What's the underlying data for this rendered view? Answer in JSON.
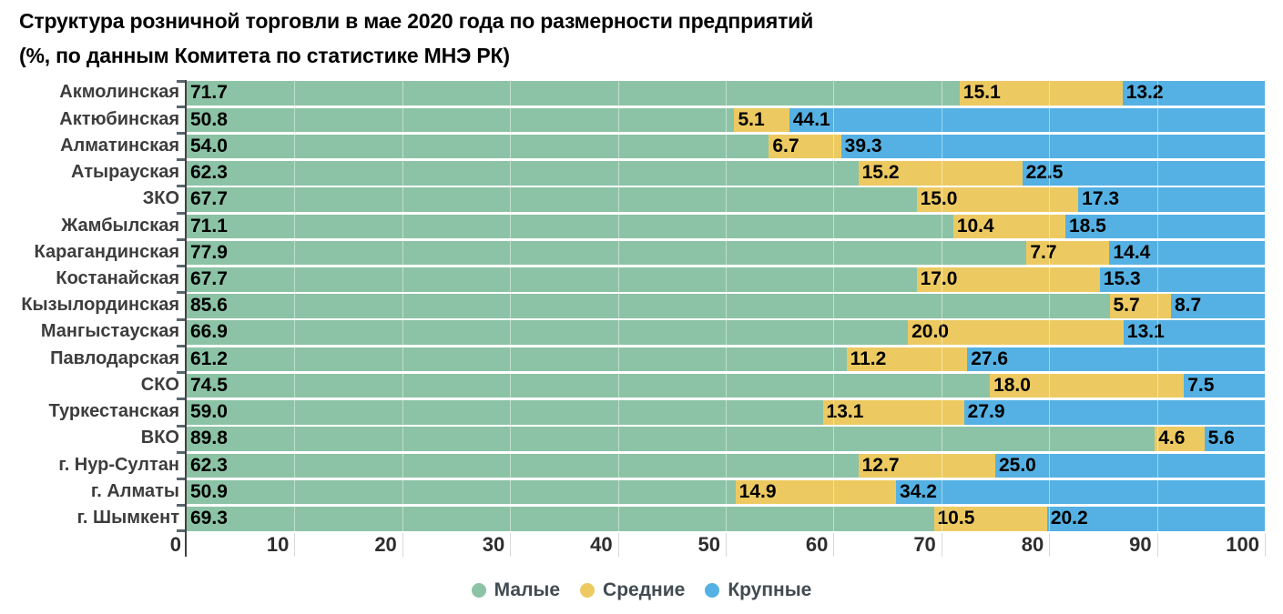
{
  "title": {
    "line1": "Структура розничной торговли в мае 2020 года по размерности предприятий",
    "line2": "(%, по данным Комитета по статистике МНЭ РК)"
  },
  "chart_data": {
    "type": "bar",
    "orientation": "horizontal",
    "stacked": true,
    "unit": "%",
    "categories": [
      "Акмолинская",
      "Актюбинская",
      "Алматинская",
      "Атырауская",
      "ЗКО",
      "Жамбылская",
      "Карагандинская",
      "Костанайская",
      "Кызылординская",
      "Мангыстауская",
      "Павлодарская",
      "СКО",
      "Туркестанская",
      "ВКО",
      "г. Нур-Султан",
      "г. Алматы",
      "г. Шымкент"
    ],
    "series": [
      {
        "name": "Малые",
        "color": "#8cc3a6",
        "values": [
          71.7,
          50.8,
          54.0,
          62.3,
          67.7,
          71.1,
          77.9,
          67.7,
          85.6,
          66.9,
          61.2,
          74.5,
          59.0,
          89.8,
          62.3,
          50.9,
          69.3
        ]
      },
      {
        "name": "Средние",
        "color": "#edca61",
        "values": [
          15.1,
          5.1,
          6.7,
          15.2,
          15.0,
          10.4,
          7.7,
          17.0,
          5.7,
          20.0,
          11.2,
          18.0,
          13.1,
          4.6,
          12.7,
          14.9,
          10.5
        ]
      },
      {
        "name": "Крупные",
        "color": "#55b1e3",
        "values": [
          13.2,
          44.1,
          39.3,
          22.5,
          17.3,
          18.5,
          14.4,
          15.3,
          8.7,
          13.1,
          27.6,
          7.5,
          27.9,
          5.6,
          25.0,
          34.2,
          20.2
        ]
      }
    ],
    "xlim": [
      0,
      100
    ],
    "x_ticks": [
      0,
      10,
      20,
      30,
      40,
      50,
      60,
      70,
      80,
      90,
      100
    ],
    "value_labels": "one-decimal",
    "grid": true,
    "legend_position": "bottom-center"
  }
}
